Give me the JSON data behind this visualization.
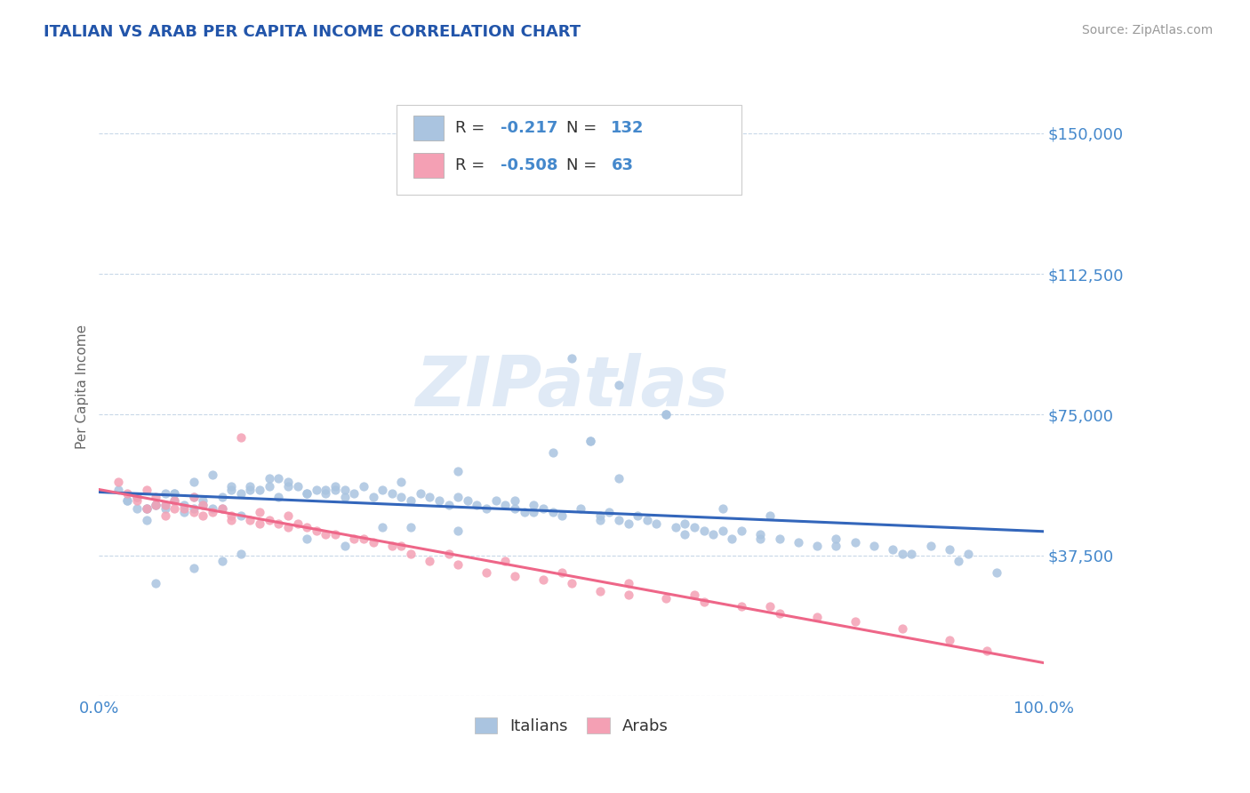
{
  "title": "ITALIAN VS ARAB PER CAPITA INCOME CORRELATION CHART",
  "source_text": "Source: ZipAtlas.com",
  "ylabel": "Per Capita Income",
  "x_min": 0.0,
  "x_max": 1.0,
  "y_min": 0,
  "y_max": 165000,
  "yticks": [
    0,
    37500,
    75000,
    112500,
    150000
  ],
  "ytick_labels": [
    "",
    "$37,500",
    "$75,000",
    "$112,500",
    "$150,000"
  ],
  "xticks": [
    0.0,
    1.0
  ],
  "xtick_labels": [
    "0.0%",
    "100.0%"
  ],
  "grid_color": "#c8d8e8",
  "background_color": "#ffffff",
  "italian_color": "#aac4e0",
  "arab_color": "#f4a0b4",
  "italian_line_color": "#3366bb",
  "arab_line_color": "#ee6688",
  "italian_R": -0.217,
  "italian_N": 132,
  "arab_R": -0.508,
  "arab_N": 63,
  "legend_label_italian": "Italians",
  "legend_label_arab": "Arabs",
  "title_color": "#2255aa",
  "axis_label_color": "#666666",
  "tick_label_color": "#4488cc",
  "watermark_text": "ZIPatlas",
  "watermark_color": "#ccddf0",
  "italian_x": [
    0.02,
    0.03,
    0.04,
    0.05,
    0.05,
    0.06,
    0.07,
    0.08,
    0.09,
    0.1,
    0.1,
    0.11,
    0.12,
    0.13,
    0.14,
    0.15,
    0.16,
    0.17,
    0.18,
    0.19,
    0.2,
    0.21,
    0.22,
    0.23,
    0.24,
    0.25,
    0.26,
    0.27,
    0.28,
    0.29,
    0.3,
    0.31,
    0.32,
    0.33,
    0.34,
    0.35,
    0.36,
    0.37,
    0.38,
    0.39,
    0.4,
    0.41,
    0.42,
    0.43,
    0.44,
    0.45,
    0.46,
    0.47,
    0.48,
    0.49,
    0.5,
    0.51,
    0.52,
    0.53,
    0.54,
    0.55,
    0.56,
    0.57,
    0.58,
    0.59,
    0.6,
    0.61,
    0.62,
    0.63,
    0.64,
    0.65,
    0.66,
    0.67,
    0.68,
    0.7,
    0.72,
    0.74,
    0.76,
    0.78,
    0.8,
    0.82,
    0.84,
    0.86,
    0.88,
    0.9,
    0.92,
    0.04,
    0.06,
    0.08,
    0.1,
    0.12,
    0.14,
    0.16,
    0.18,
    0.2,
    0.22,
    0.24,
    0.26,
    0.03,
    0.05,
    0.07,
    0.09,
    0.11,
    0.13,
    0.15,
    0.55,
    0.6,
    0.52,
    0.48,
    0.38,
    0.32,
    0.25,
    0.19,
    0.08,
    0.04,
    0.62,
    0.7,
    0.78,
    0.85,
    0.91,
    0.95,
    0.55,
    0.44,
    0.33,
    0.66,
    0.71,
    0.46,
    0.53,
    0.38,
    0.26,
    0.13,
    0.07,
    0.3,
    0.22,
    0.15,
    0.1,
    0.06
  ],
  "italian_y": [
    55000,
    52000,
    53000,
    50000,
    47000,
    51000,
    50000,
    52000,
    51000,
    53000,
    50000,
    52000,
    50000,
    53000,
    55000,
    54000,
    56000,
    55000,
    56000,
    53000,
    57000,
    56000,
    54000,
    55000,
    54000,
    56000,
    55000,
    54000,
    56000,
    53000,
    55000,
    54000,
    53000,
    52000,
    54000,
    53000,
    52000,
    51000,
    53000,
    52000,
    51000,
    50000,
    52000,
    51000,
    50000,
    49000,
    51000,
    50000,
    49000,
    48000,
    90000,
    50000,
    68000,
    47000,
    49000,
    47000,
    46000,
    48000,
    47000,
    46000,
    75000,
    45000,
    46000,
    45000,
    44000,
    43000,
    44000,
    42000,
    44000,
    43000,
    42000,
    41000,
    40000,
    42000,
    41000,
    40000,
    39000,
    38000,
    40000,
    39000,
    38000,
    53000,
    51000,
    54000,
    57000,
    59000,
    56000,
    55000,
    58000,
    56000,
    54000,
    55000,
    53000,
    52000,
    50000,
    51000,
    49000,
    51000,
    50000,
    48000,
    83000,
    75000,
    68000,
    65000,
    60000,
    57000,
    55000,
    58000,
    54000,
    50000,
    43000,
    42000,
    40000,
    38000,
    36000,
    33000,
    58000,
    52000,
    45000,
    50000,
    48000,
    49000,
    48000,
    44000,
    40000,
    36000,
    54000,
    45000,
    42000,
    38000,
    34000,
    30000
  ],
  "arab_x": [
    0.02,
    0.03,
    0.04,
    0.05,
    0.05,
    0.06,
    0.07,
    0.07,
    0.08,
    0.09,
    0.1,
    0.1,
    0.11,
    0.12,
    0.13,
    0.14,
    0.15,
    0.16,
    0.17,
    0.18,
    0.19,
    0.2,
    0.21,
    0.22,
    0.23,
    0.25,
    0.27,
    0.29,
    0.31,
    0.33,
    0.35,
    0.38,
    0.41,
    0.44,
    0.47,
    0.5,
    0.53,
    0.56,
    0.6,
    0.64,
    0.68,
    0.72,
    0.76,
    0.8,
    0.85,
    0.9,
    0.94,
    0.04,
    0.06,
    0.08,
    0.11,
    0.14,
    0.17,
    0.2,
    0.24,
    0.28,
    0.32,
    0.37,
    0.43,
    0.49,
    0.56,
    0.63,
    0.71
  ],
  "arab_y": [
    57000,
    54000,
    52000,
    55000,
    50000,
    53000,
    51000,
    48000,
    52000,
    50000,
    53000,
    49000,
    51000,
    49000,
    50000,
    48000,
    69000,
    47000,
    49000,
    47000,
    46000,
    48000,
    46000,
    45000,
    44000,
    43000,
    42000,
    41000,
    40000,
    38000,
    36000,
    35000,
    33000,
    32000,
    31000,
    30000,
    28000,
    27000,
    26000,
    25000,
    24000,
    22000,
    21000,
    20000,
    18000,
    15000,
    12000,
    53000,
    51000,
    50000,
    48000,
    47000,
    46000,
    45000,
    43000,
    42000,
    40000,
    38000,
    36000,
    33000,
    30000,
    27000,
    24000
  ]
}
